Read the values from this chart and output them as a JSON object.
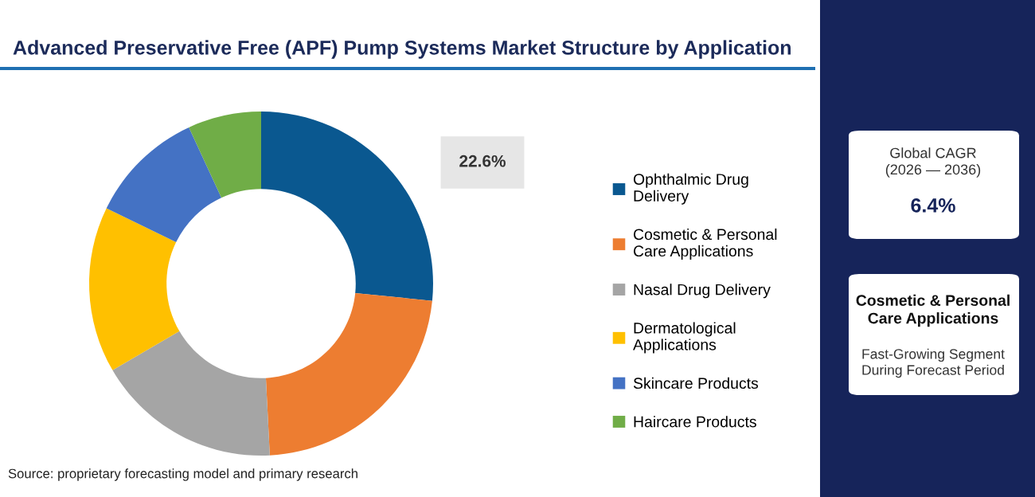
{
  "chart_data": {
    "type": "donut",
    "title": "Advanced Preservative Free (APF) Pump Systems Market Structure by Application",
    "categories": [
      "Ophthalmic Drug\nDelivery",
      "Cosmetic & Personal\nCare Applications",
      "Nasal Drug Delivery",
      "Dermatological\nApplications",
      "Skincare Products",
      "Haircare Products"
    ],
    "values": [
      26.6,
      22.6,
      17.4,
      15.6,
      10.9,
      6.9
    ],
    "colors": [
      "#0a5890",
      "#ed7d31",
      "#a5a5a5",
      "#ffc000",
      "#4472c4",
      "#70ad47"
    ],
    "legend": "right",
    "annotations": [
      "22.6%",
      "Global CAGR\n(2026 — 2036)",
      "6.4%",
      "Cosmetic & Personal\nCare Applications",
      "Fast-Growing Segment\nDuring Forecast Period",
      "Source: proprietary forecasting model and primary research"
    ]
  }
}
